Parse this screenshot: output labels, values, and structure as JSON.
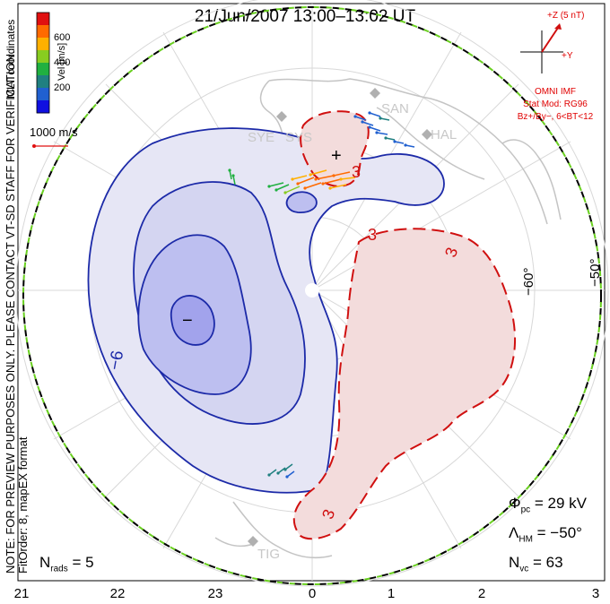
{
  "title": "21/Jun/2007 13:00–13:02 UT",
  "colorbar": {
    "label": "Vel [m/s]",
    "ticks": [
      "600",
      "400",
      "200"
    ],
    "colors": [
      "#e01010",
      "#ff6a00",
      "#ffb000",
      "#88cc20",
      "#20b040",
      "#208080",
      "#2060d0",
      "#1010e0"
    ]
  },
  "mlt_coordinates_label": "MLT coordinates",
  "velocity_scale": "1000 m/s",
  "note": "NOTE: FOR PREVIEW PURPOSES ONLY. PLEASE CONTACT VT-SD STAFF FOR VERIFICATION.",
  "fit_info": "FitOrder: 8, mapEX format",
  "imf": {
    "axis_z": "+Z (5 nT)",
    "axis_y": "+Y",
    "model_lines": [
      "OMNI IMF",
      "Stat Mod: RG96",
      "Bz+/By−, 6<BT<12"
    ]
  },
  "latitude_labels": [
    "−60°",
    "−50°"
  ],
  "mlt_ticks": [
    "21",
    "22",
    "23",
    "0",
    "1",
    "2",
    "3"
  ],
  "stations": [
    "SYE",
    "SYS",
    "SAN",
    "HAL",
    "TIG"
  ],
  "contour_labels": {
    "negative": "−6",
    "positive_1": "3",
    "positive_2": "3",
    "positive_3": "3",
    "positive_4": "3"
  },
  "extrema": {
    "min_marker": "−",
    "max_marker": "+"
  },
  "stats": {
    "phi_pc_symbol": "Φ",
    "phi_pc_sub": "pc",
    "phi_pc_value": "= 29 kV",
    "lambda_hm_symbol": "Λ",
    "lambda_hm_sub": "HM",
    "lambda_hm_value": "= −50°",
    "n_vc_symbol": "N",
    "n_vc_sub": "vc",
    "n_vc_value": "= 63",
    "n_rads_symbol": "N",
    "n_rads_sub": "rads",
    "n_rads_value": "= 5"
  }
}
